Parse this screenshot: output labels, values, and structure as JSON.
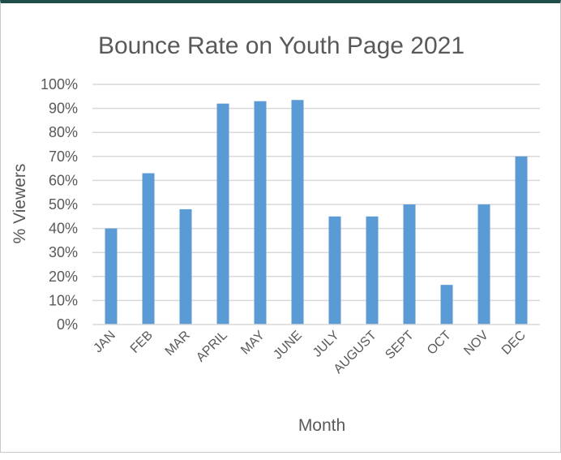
{
  "chart_data": {
    "type": "bar",
    "title": "Bounce Rate on Youth Page 2021",
    "xlabel": "Month",
    "ylabel": "% Viewers",
    "categories": [
      "JAN",
      "FEB",
      "MAR",
      "APRIL",
      "MAY",
      "JUNE",
      "JULY",
      "AUGUST",
      "SEPT",
      "OCT",
      "NOV",
      "DEC"
    ],
    "values": [
      0.4,
      0.63,
      0.48,
      0.92,
      0.93,
      0.935,
      0.45,
      0.45,
      0.5,
      0.165,
      0.5,
      0.7
    ],
    "ylim": [
      0,
      1
    ],
    "yticks": [
      0,
      0.1,
      0.2,
      0.3,
      0.4,
      0.5,
      0.6,
      0.7,
      0.8,
      0.9,
      1.0
    ],
    "ytick_labels": [
      "0%",
      "10%",
      "20%",
      "30%",
      "40%",
      "50%",
      "60%",
      "70%",
      "80%",
      "90%",
      "100%"
    ],
    "grid": true,
    "legend": "none",
    "bar_color": "#5b9bd5"
  }
}
